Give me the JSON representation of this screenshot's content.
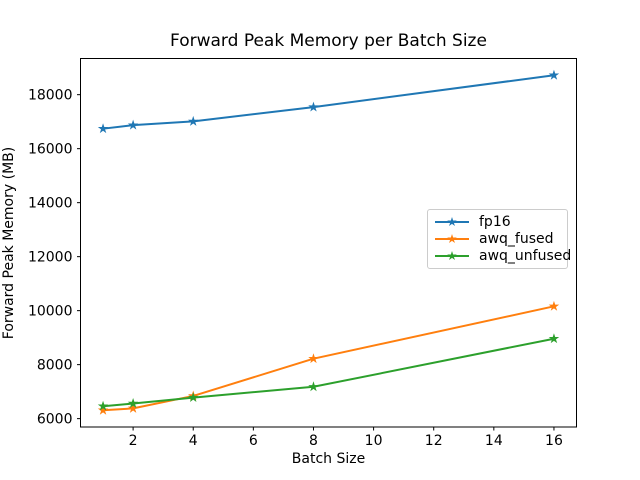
{
  "figure": {
    "background": "#ffffff",
    "spine_color": "#000000",
    "legend_border_color": "#cccccc"
  },
  "chart_data": {
    "type": "line",
    "title": "Forward Peak Memory per Batch Size",
    "xlabel": "Batch Size",
    "ylabel": "Forward Peak Memory (MB)",
    "x": [
      1,
      2,
      4,
      8,
      16
    ],
    "series": [
      {
        "name": "fp16",
        "color": "#1f77b4",
        "marker": "star",
        "values": [
          16740,
          16870,
          17010,
          17540,
          18720
        ]
      },
      {
        "name": "awq_fused",
        "color": "#ff7f0e",
        "marker": "star",
        "values": [
          6310,
          6380,
          6840,
          8220,
          10160
        ]
      },
      {
        "name": "awq_unfused",
        "color": "#2ca02c",
        "marker": "star",
        "values": [
          6460,
          6560,
          6780,
          7180,
          8960
        ]
      }
    ],
    "xticks": [
      2,
      4,
      6,
      8,
      10,
      12,
      14,
      16
    ],
    "yticks": [
      6000,
      8000,
      10000,
      12000,
      14000,
      16000,
      18000
    ],
    "xlim": [
      0.25,
      16.75
    ],
    "ylim": [
      5690,
      19340
    ],
    "grid": false,
    "legend_position": "center-right"
  }
}
